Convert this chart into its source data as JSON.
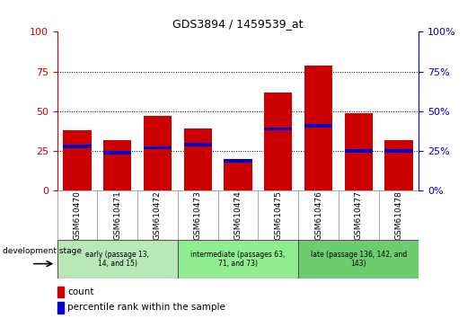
{
  "title": "GDS3894 / 1459539_at",
  "samples": [
    "GSM610470",
    "GSM610471",
    "GSM610472",
    "GSM610473",
    "GSM610474",
    "GSM610475",
    "GSM610476",
    "GSM610477",
    "GSM610478"
  ],
  "count_values": [
    38,
    32,
    47,
    39,
    19,
    62,
    79,
    49,
    32
  ],
  "percentile_values": [
    28,
    24,
    27,
    29,
    19,
    39,
    41,
    25,
    25
  ],
  "bar_color": "#cc0000",
  "percentile_color": "#0000cc",
  "ylim": [
    0,
    100
  ],
  "yticks": [
    0,
    25,
    50,
    75,
    100
  ],
  "grid_lines": [
    25,
    50,
    75
  ],
  "group_boundaries": [
    0,
    3,
    6,
    9
  ],
  "group_labels": [
    "early (passage 13,\n14, and 15)",
    "intermediate (passages 63,\n71, and 73)",
    "late (passage 136, 142, and\n143)"
  ],
  "group_colors": [
    "#b8e8b8",
    "#90ee90",
    "#6dcc6d"
  ],
  "dev_stage_label": "development stage",
  "legend_count_label": "count",
  "legend_pct_label": "percentile rank within the sample",
  "background_color": "#ffffff",
  "tick_area_color": "#c8c8c8",
  "left_tick_color": "#cc0000",
  "right_tick_color": "#0000cc",
  "title_color": "#000000",
  "percentile_bar_height": 2.0
}
